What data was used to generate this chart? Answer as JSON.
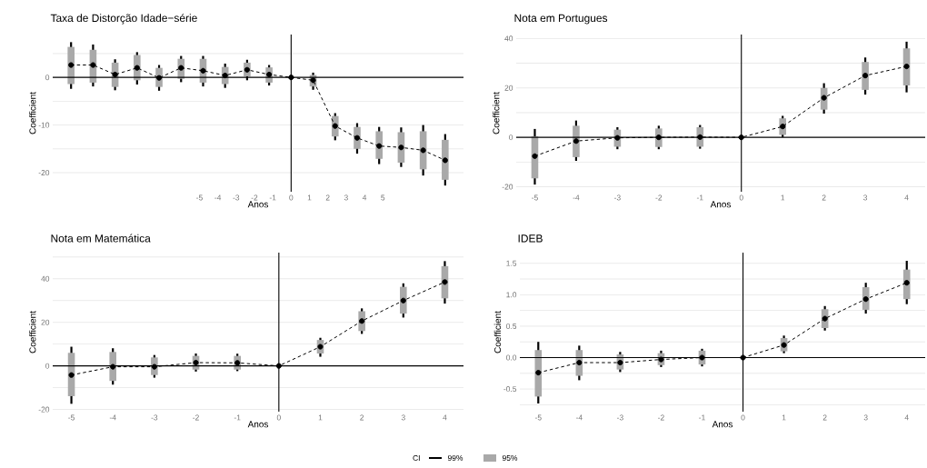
{
  "chart_data": [
    {
      "type": "line",
      "title": "Taxa de Distorção Idade−série",
      "xlabel": "Anos",
      "ylabel": "Coefficient",
      "x": [
        -12,
        -10.8,
        -9.6,
        -8.4,
        -7.2,
        -6,
        -4.8,
        -3.6,
        -2.4,
        -1.2,
        0,
        1.2,
        2.4,
        3.6,
        4.8,
        6,
        7.2,
        8.4
      ],
      "xlim": [
        -13,
        9.4
      ],
      "xticks": [
        -5,
        -4,
        -3,
        -2,
        -1,
        0,
        1,
        2,
        3,
        4,
        5
      ],
      "ylim": [
        -24,
        9
      ],
      "yticks": [
        -20,
        {
          "value": -15,
          "label": null
        },
        -10,
        {
          "value": -5,
          "label": null
        },
        0,
        {
          "value": 5,
          "label": null
        }
      ],
      "grid": "y",
      "series": [
        {
          "type": "bar",
          "color": "#a9a9a9",
          "base": [
            -1.4,
            -1.1,
            -2.0,
            -0.6,
            -2.0,
            -0.3,
            -1.1,
            -1.4,
            0.2,
            -1.1,
            null,
            -1.9,
            -12.4,
            -15.0,
            -17.1,
            -17.9,
            -19.3,
            -21.5
          ],
          "values": [
            7.8,
            6.9,
            5.1,
            5.3,
            4.0,
            4.2,
            5.0,
            3.6,
            2.9,
            3.2,
            null,
            2.4,
            4.3,
            4.6,
            5.8,
            6.4,
            8.0,
            8.4
          ]
        },
        {
          "type": "line",
          "color": "#000000",
          "marker": "circle",
          "line_style": "dashed",
          "values": [
            2.6,
            2.6,
            0.6,
            2.0,
            -0.1,
            2.0,
            1.4,
            0.4,
            1.6,
            0.6,
            0,
            -0.6,
            -10.2,
            -12.7,
            -14.4,
            -14.7,
            -15.3,
            -17.4
          ],
          "errors": [
            [
              -2.4,
              7.4
            ],
            [
              -1.9,
              6.9
            ],
            [
              -2.7,
              3.8
            ],
            [
              -1.5,
              5.3
            ],
            [
              -2.8,
              2.6
            ],
            [
              -1.0,
              4.5
            ],
            [
              -1.9,
              4.5
            ],
            [
              -2.2,
              2.9
            ],
            [
              -0.6,
              3.7
            ],
            [
              -1.7,
              2.6
            ],
            null,
            [
              -2.6,
              1.0
            ],
            [
              -13.2,
              -7.5
            ],
            [
              -16.0,
              -9.6
            ],
            [
              -18.2,
              -10.4
            ],
            [
              -18.8,
              -10.5
            ],
            [
              -20.6,
              -10.0
            ],
            [
              -22.7,
              -11.9
            ]
          ]
        }
      ],
      "ref_lines": [
        {
          "axis": "x",
          "value": 0,
          "color": "#000000"
        }
      ]
    },
    {
      "type": "line",
      "title": "Nota em Portugues",
      "xlabel": "Anos",
      "ylabel": "Coefficient",
      "x": [
        -5,
        -4,
        -3,
        -2,
        -1,
        0,
        1,
        2,
        3,
        4
      ],
      "xlim": [
        -5.45,
        4.45
      ],
      "xticks": [
        -5,
        -4,
        -3,
        -2,
        -1,
        0,
        1,
        2,
        3,
        4
      ],
      "ylim": [
        -22,
        41.6
      ],
      "yticks": [
        -20,
        {
          "value": -10,
          "label": null
        },
        0,
        {
          "value": 10,
          "label": null
        },
        20,
        {
          "value": 30,
          "label": null
        },
        40
      ],
      "grid": "y",
      "series": [
        {
          "type": "bar",
          "color": "#a9a9a9",
          "base": [
            -16.6,
            -8.0,
            -3.8,
            -3.9,
            -3.8,
            null,
            1.0,
            11.2,
            19.2,
            21.0
          ],
          "values": [
            17.0,
            12.7,
            6.9,
            7.5,
            7.9,
            null,
            6.7,
            8.8,
            11.3,
            15.0
          ]
        },
        {
          "type": "line",
          "color": "#000000",
          "marker": "circle",
          "line_style": "dashed",
          "values": [
            -7.6,
            -1.5,
            -0.2,
            0,
            0.1,
            0,
            4.4,
            16.0,
            25.0,
            28.7
          ],
          "errors": [
            [
              -19.1,
              3.4
            ],
            [
              -9.5,
              6.8
            ],
            [
              -4.8,
              4.1
            ],
            [
              -4.8,
              4.7
            ],
            [
              -4.6,
              5.0
            ],
            null,
            [
              0.1,
              8.7
            ],
            [
              9.6,
              21.9
            ],
            [
              17.3,
              32.3
            ],
            [
              18.2,
              38.7
            ]
          ]
        }
      ],
      "ref_lines": [
        {
          "axis": "x",
          "value": 0,
          "color": "#000000"
        }
      ]
    },
    {
      "type": "line",
      "title": "Nota em Matemática",
      "xlabel": "Anos",
      "ylabel": "Coefficient",
      "x": [
        -5,
        -4,
        -3,
        -2,
        -1,
        0,
        1,
        2,
        3,
        4
      ],
      "xlim": [
        -5.45,
        4.45
      ],
      "xticks": [
        -5,
        -4,
        -3,
        -2,
        -1,
        0,
        1,
        2,
        3,
        4
      ],
      "ylim": [
        -21,
        52
      ],
      "yticks": [
        -20,
        {
          "value": -10,
          "label": null
        },
        0,
        {
          "value": 10,
          "label": null
        },
        20,
        {
          "value": 30,
          "label": null
        },
        40,
        {
          "value": 50,
          "label": null
        }
      ],
      "grid": "y",
      "series": [
        {
          "type": "bar",
          "color": "#a9a9a9",
          "base": [
            -13.9,
            -6.9,
            -4.2,
            -1.7,
            -1.7,
            null,
            5.7,
            16.0,
            24.0,
            31.0
          ],
          "values": [
            19.9,
            13.3,
            8.1,
            6.3,
            6.3,
            null,
            6.2,
            9.1,
            12.3,
            14.8
          ]
        },
        {
          "type": "line",
          "color": "#000000",
          "marker": "circle",
          "line_style": "dashed",
          "values": [
            -4.2,
            -0.4,
            -0.4,
            1.5,
            1.4,
            0,
            8.8,
            20.6,
            30.0,
            38.5
          ],
          "errors": [
            [
              -17.4,
              8.8
            ],
            [
              -8.6,
              8.1
            ],
            [
              -5.4,
              5.0
            ],
            [
              -2.6,
              5.7
            ],
            [
              -2.4,
              5.6
            ],
            null,
            [
              4.2,
              12.9
            ],
            [
              14.7,
              26.4
            ],
            [
              22.2,
              37.9
            ],
            [
              28.6,
              48.1
            ]
          ]
        }
      ],
      "ref_lines": [
        {
          "axis": "x",
          "value": 0,
          "color": "#000000"
        }
      ]
    },
    {
      "type": "line",
      "title": "IDEB",
      "xlabel": "Anos",
      "ylabel": "Coefficient",
      "legend_title": "CI",
      "legend": "bottom",
      "x": [
        -5,
        -4,
        -3,
        -2,
        -1,
        0,
        1,
        2,
        3,
        4
      ],
      "xlim": [
        -5.45,
        4.45
      ],
      "xticks": [
        -5,
        -4,
        -3,
        -2,
        -1,
        0,
        1,
        2,
        3,
        4
      ],
      "ylim": [
        -0.86,
        1.67
      ],
      "yticks": [
        {
          "value": -0.75,
          "label": null
        },
        -0.5,
        {
          "value": -0.25,
          "label": null
        },
        {
          "value": 0,
          "label": "0.0"
        },
        {
          "value": 0.25,
          "label": null
        },
        0.5,
        {
          "value": 0.75,
          "label": null
        },
        {
          "value": 1,
          "label": "1.0"
        },
        {
          "value": 1.25,
          "label": null
        },
        1.5
      ],
      "grid": "y",
      "series": [
        {
          "type": "bar",
          "name": "95%",
          "color": "#a9a9a9",
          "base": [
            -0.62,
            -0.29,
            -0.19,
            -0.12,
            -0.11,
            null,
            0.1,
            0.47,
            0.76,
            0.93
          ],
          "values": [
            0.74,
            0.41,
            0.24,
            0.19,
            0.22,
            null,
            0.21,
            0.3,
            0.36,
            0.47
          ]
        },
        {
          "type": "line",
          "name": "99%",
          "color": "#000000",
          "marker": "circle",
          "line_style": "dashed",
          "values": [
            -0.24,
            -0.08,
            -0.08,
            -0.03,
            0.0,
            0,
            0.2,
            0.62,
            0.93,
            1.19
          ],
          "errors": [
            [
              -0.73,
              0.25
            ],
            [
              -0.36,
              0.19
            ],
            [
              -0.23,
              0.09
            ],
            [
              -0.15,
              0.11
            ],
            [
              -0.14,
              0.14
            ],
            null,
            [
              0.07,
              0.35
            ],
            [
              0.43,
              0.82
            ],
            [
              0.7,
              1.19
            ],
            [
              0.85,
              1.54
            ]
          ]
        }
      ],
      "ref_lines": [
        {
          "axis": "x",
          "value": 0,
          "color": "#000000"
        }
      ]
    }
  ]
}
